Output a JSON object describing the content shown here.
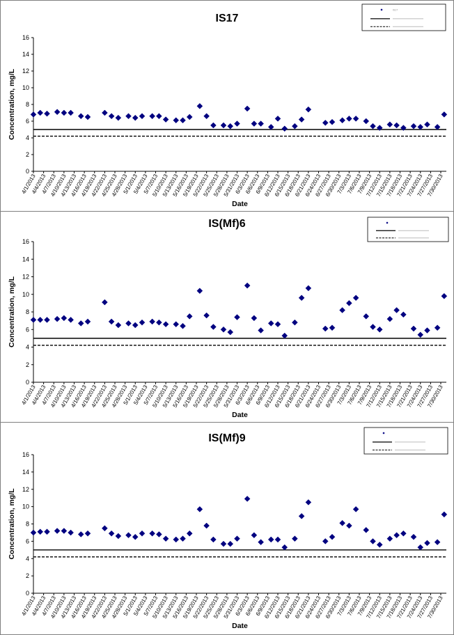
{
  "chart_data": [
    {
      "type": "scatter",
      "title": "IS17",
      "xlabel": "Date",
      "ylabel": "Concentration, mg/L",
      "ylim": [
        0,
        16
      ],
      "yticks": [
        0,
        2,
        4,
        6,
        8,
        10,
        12,
        14,
        16
      ],
      "xticks": [
        "4/1/2013",
        "4/4/2013",
        "4/7/2013",
        "4/10/2013",
        "4/13/2013",
        "4/16/2013",
        "4/19/2013",
        "4/22/2013",
        "4/25/2013",
        "4/28/2013",
        "5/1/2013",
        "5/4/2013",
        "5/7/2013",
        "5/10/2013",
        "5/13/2013",
        "5/16/2013",
        "5/19/2013",
        "5/22/2013",
        "5/25/2013",
        "5/28/2013",
        "5/31/2013",
        "6/3/2013",
        "6/6/2013",
        "6/9/2013",
        "6/12/2013",
        "6/15/2013",
        "6/18/2013",
        "6/21/2013",
        "6/24/2013",
        "6/27/2013",
        "6/30/2013",
        "7/3/2013",
        "7/6/2013",
        "7/9/2013",
        "7/12/2013",
        "7/15/2013",
        "7/18/2013",
        "7/21/2013",
        "7/24/2013",
        "7/27/2013",
        "7/30/2013"
      ],
      "grid": false,
      "legend_placement": "top-right",
      "hlines": [
        {
          "y": 5.0,
          "style": "solid"
        },
        {
          "y": 4.2,
          "style": "dashed"
        }
      ],
      "series": [
        {
          "name": "IS17",
          "marker": "diamond",
          "color": "#000080",
          "x": [
            "4/1/2013",
            "4/3/2013",
            "4/5/2013",
            "4/8/2013",
            "4/10/2013",
            "4/12/2013",
            "4/15/2013",
            "4/17/2013",
            "4/22/2013",
            "4/24/2013",
            "4/26/2013",
            "4/29/2013",
            "5/1/2013",
            "5/3/2013",
            "5/6/2013",
            "5/8/2013",
            "5/10/2013",
            "5/13/2013",
            "5/15/2013",
            "5/17/2013",
            "5/20/2013",
            "5/22/2013",
            "5/24/2013",
            "5/27/2013",
            "5/29/2013",
            "5/31/2013",
            "6/3/2013",
            "6/5/2013",
            "6/7/2013",
            "6/10/2013",
            "6/12/2013",
            "6/14/2013",
            "6/17/2013",
            "6/19/2013",
            "6/21/2013",
            "6/26/2013",
            "6/28/2013",
            "7/1/2013",
            "7/3/2013",
            "7/5/2013",
            "7/8/2013",
            "7/10/2013",
            "7/12/2013",
            "7/15/2013",
            "7/17/2013",
            "7/19/2013",
            "7/22/2013",
            "7/24/2013",
            "7/26/2013",
            "7/29/2013",
            "7/31/2013"
          ],
          "y": [
            6.8,
            7.0,
            6.9,
            7.1,
            7.0,
            7.0,
            6.6,
            6.5,
            7.0,
            6.6,
            6.4,
            6.6,
            6.4,
            6.6,
            6.6,
            6.6,
            6.2,
            6.1,
            6.1,
            6.5,
            7.8,
            6.6,
            5.5,
            5.5,
            5.4,
            5.7,
            7.5,
            5.7,
            5.7,
            5.3,
            6.3,
            5.1,
            5.4,
            6.2,
            7.4,
            5.8,
            5.9,
            6.1,
            6.3,
            6.3,
            6.0,
            5.4,
            5.2,
            5.6,
            5.5,
            5.2,
            5.4,
            5.3,
            5.6,
            5.3,
            6.8
          ]
        }
      ]
    },
    {
      "type": "scatter",
      "title": "IS(Mf)6",
      "xlabel": "Date",
      "ylabel": "Concentration, mg/L",
      "ylim": [
        0,
        16
      ],
      "yticks": [
        0,
        2,
        4,
        6,
        8,
        10,
        12,
        14,
        16
      ],
      "xticks": [
        "4/1/2013",
        "4/4/2013",
        "4/7/2013",
        "4/10/2013",
        "4/13/2013",
        "4/16/2013",
        "4/19/2013",
        "4/22/2013",
        "4/25/2013",
        "4/28/2013",
        "5/1/2013",
        "5/4/2013",
        "5/7/2013",
        "5/10/2013",
        "5/13/2013",
        "5/16/2013",
        "5/19/2013",
        "5/22/2013",
        "5/25/2013",
        "5/28/2013",
        "5/31/2013",
        "6/3/2013",
        "6/6/2013",
        "6/9/2013",
        "6/12/2013",
        "6/15/2013",
        "6/18/2013",
        "6/21/2013",
        "6/24/2013",
        "6/27/2013",
        "6/30/2013",
        "7/3/2013",
        "7/6/2013",
        "7/9/2013",
        "7/12/2013",
        "7/15/2013",
        "7/18/2013",
        "7/21/2013",
        "7/24/2013",
        "7/27/2013",
        "7/30/2013"
      ],
      "grid": false,
      "legend_placement": "top-right",
      "hlines": [
        {
          "y": 5.0,
          "style": "solid"
        },
        {
          "y": 4.2,
          "style": "dashed"
        }
      ],
      "series": [
        {
          "name": "",
          "marker": "diamond",
          "color": "#000080",
          "x": [
            "4/1/2013",
            "4/3/2013",
            "4/5/2013",
            "4/8/2013",
            "4/10/2013",
            "4/12/2013",
            "4/15/2013",
            "4/17/2013",
            "4/22/2013",
            "4/24/2013",
            "4/26/2013",
            "4/29/2013",
            "5/1/2013",
            "5/3/2013",
            "5/6/2013",
            "5/8/2013",
            "5/10/2013",
            "5/13/2013",
            "5/15/2013",
            "5/17/2013",
            "5/20/2013",
            "5/22/2013",
            "5/24/2013",
            "5/27/2013",
            "5/29/2013",
            "5/31/2013",
            "6/3/2013",
            "6/5/2013",
            "6/7/2013",
            "6/10/2013",
            "6/12/2013",
            "6/14/2013",
            "6/17/2013",
            "6/19/2013",
            "6/21/2013",
            "6/26/2013",
            "6/28/2013",
            "7/1/2013",
            "7/3/2013",
            "7/5/2013",
            "7/8/2013",
            "7/10/2013",
            "7/12/2013",
            "7/15/2013",
            "7/17/2013",
            "7/19/2013",
            "7/22/2013",
            "7/24/2013",
            "7/26/2013",
            "7/29/2013",
            "7/31/2013"
          ],
          "y": [
            7.1,
            7.1,
            7.1,
            7.2,
            7.3,
            7.1,
            6.7,
            6.9,
            9.1,
            6.9,
            6.5,
            6.7,
            6.5,
            6.8,
            6.9,
            6.8,
            6.6,
            6.6,
            6.4,
            7.5,
            10.4,
            7.6,
            6.3,
            6.0,
            5.7,
            7.4,
            11.0,
            7.3,
            5.9,
            6.7,
            6.6,
            5.3,
            6.8,
            9.6,
            10.7,
            6.1,
            6.2,
            8.2,
            9.0,
            9.6,
            7.5,
            6.3,
            6.0,
            7.2,
            8.2,
            7.7,
            6.1,
            5.4,
            5.9,
            6.2,
            9.8
          ]
        }
      ]
    },
    {
      "type": "scatter",
      "title": "IS(Mf)9",
      "xlabel": "Date",
      "ylabel": "Concentration, mg/L",
      "ylim": [
        0,
        16
      ],
      "yticks": [
        0,
        2,
        4,
        6,
        8,
        10,
        12,
        14,
        16
      ],
      "xticks": [
        "4/1/2013",
        "4/4/2013",
        "4/7/2013",
        "4/10/2013",
        "4/13/2013",
        "4/16/2013",
        "4/19/2013",
        "4/22/2013",
        "4/25/2013",
        "4/28/2013",
        "5/1/2013",
        "5/4/2013",
        "5/7/2013",
        "5/10/2013",
        "5/13/2013",
        "5/16/2013",
        "5/19/2013",
        "5/22/2013",
        "5/25/2013",
        "5/28/2013",
        "5/31/2013",
        "6/3/2013",
        "6/6/2013",
        "6/9/2013",
        "6/12/2013",
        "6/15/2013",
        "6/18/2013",
        "6/21/2013",
        "6/24/2013",
        "6/27/2013",
        "6/30/2013",
        "7/3/2013",
        "7/6/2013",
        "7/9/2013",
        "7/12/2013",
        "7/15/2013",
        "7/18/2013",
        "7/21/2013",
        "7/24/2013",
        "7/27/2013",
        "7/30/2013"
      ],
      "grid": false,
      "legend_placement": "top-right",
      "hlines": [
        {
          "y": 5.0,
          "style": "solid"
        },
        {
          "y": 4.2,
          "style": "dashed"
        }
      ],
      "series": [
        {
          "name": "",
          "marker": "diamond",
          "color": "#000080",
          "x": [
            "4/1/2013",
            "4/3/2013",
            "4/5/2013",
            "4/8/2013",
            "4/10/2013",
            "4/12/2013",
            "4/15/2013",
            "4/17/2013",
            "4/22/2013",
            "4/24/2013",
            "4/26/2013",
            "4/29/2013",
            "5/1/2013",
            "5/3/2013",
            "5/6/2013",
            "5/8/2013",
            "5/10/2013",
            "5/13/2013",
            "5/15/2013",
            "5/17/2013",
            "5/20/2013",
            "5/22/2013",
            "5/24/2013",
            "5/27/2013",
            "5/29/2013",
            "5/31/2013",
            "6/3/2013",
            "6/5/2013",
            "6/7/2013",
            "6/10/2013",
            "6/12/2013",
            "6/14/2013",
            "6/17/2013",
            "6/19/2013",
            "6/21/2013",
            "6/26/2013",
            "6/28/2013",
            "7/1/2013",
            "7/3/2013",
            "7/5/2013",
            "7/8/2013",
            "7/10/2013",
            "7/12/2013",
            "7/15/2013",
            "7/17/2013",
            "7/19/2013",
            "7/22/2013",
            "7/24/2013",
            "7/26/2013",
            "7/29/2013",
            "7/31/2013"
          ],
          "y": [
            7.0,
            7.1,
            7.1,
            7.2,
            7.2,
            7.0,
            6.8,
            6.9,
            7.5,
            6.9,
            6.6,
            6.7,
            6.5,
            6.9,
            6.9,
            6.8,
            6.3,
            6.2,
            6.3,
            6.9,
            9.7,
            7.8,
            6.2,
            5.7,
            5.7,
            6.3,
            10.9,
            6.7,
            5.9,
            6.2,
            6.2,
            5.3,
            6.3,
            8.9,
            10.5,
            6.0,
            6.5,
            8.1,
            7.8,
            9.7,
            7.3,
            6.0,
            5.6,
            6.3,
            6.7,
            6.9,
            6.5,
            5.3,
            5.8,
            5.9,
            9.1
          ]
        }
      ]
    }
  ]
}
